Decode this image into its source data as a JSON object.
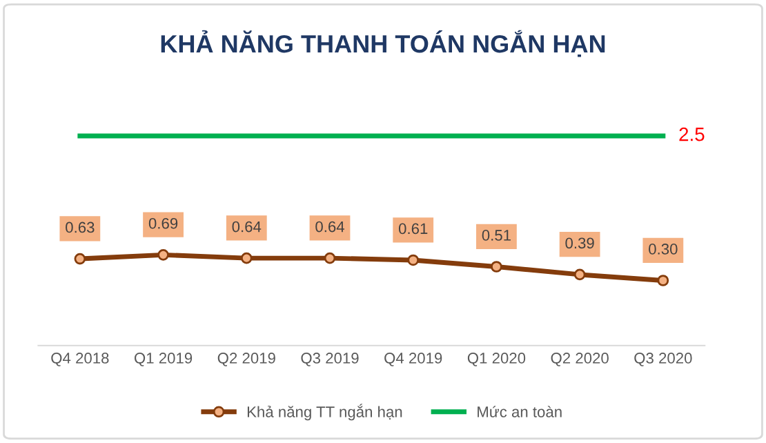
{
  "chart_data": {
    "type": "line",
    "title": "KHẢ NĂNG THANH TOÁN NGẮN HẠN",
    "categories": [
      "Q4 2018",
      "Q1 2019",
      "Q2 2019",
      "Q3 2019",
      "Q4 2019",
      "Q1 2020",
      "Q2 2020",
      "Q3 2020"
    ],
    "series": [
      {
        "name": "Khả năng TT ngắn hạn",
        "color": "#843c0c",
        "marker": "circle",
        "values": [
          0.63,
          0.69,
          0.64,
          0.64,
          0.61,
          0.51,
          0.39,
          0.3
        ],
        "value_labels": [
          "0.63",
          "0.69",
          "0.64",
          "0.64",
          "0.61",
          "0.51",
          "0.39",
          "0.30"
        ]
      },
      {
        "name": "Mức an toàn",
        "color": "#00b050",
        "marker": "none",
        "values": [
          2.5,
          2.5,
          2.5,
          2.5,
          2.5,
          2.5,
          2.5,
          2.5
        ],
        "value_labels": [
          null,
          null,
          null,
          null,
          null,
          null,
          null,
          "2.5"
        ]
      }
    ],
    "grid": false,
    "legend": "bottom",
    "tick_labels": "x"
  }
}
